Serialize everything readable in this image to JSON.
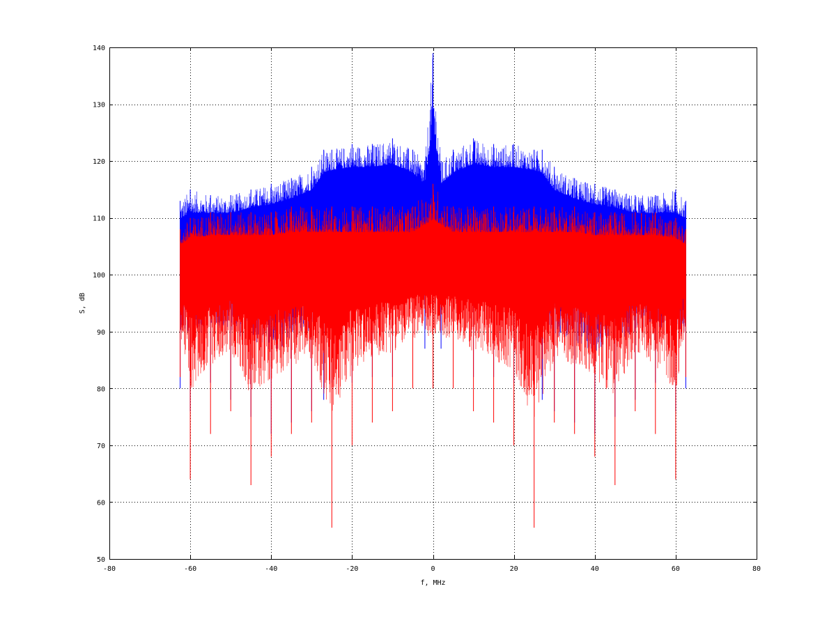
{
  "chart_data": {
    "type": "line",
    "title": "",
    "xlabel": "f, MHz",
    "ylabel": "S, dB",
    "xlim": [
      -80,
      80
    ],
    "ylim": [
      50,
      140
    ],
    "xticks": [
      -80,
      -60,
      -40,
      -20,
      0,
      20,
      40,
      60,
      80
    ],
    "yticks": [
      50,
      60,
      70,
      80,
      90,
      100,
      110,
      120,
      130,
      140
    ],
    "xtick_labels": [
      "-80",
      "-60",
      "-40",
      "-20",
      "0",
      "20",
      "40",
      "60",
      "80"
    ],
    "ytick_labels": [
      "50",
      "60",
      "70",
      "80",
      "90",
      "100",
      "110",
      "120",
      "130",
      "140"
    ],
    "grid": true,
    "grid_style": "dotted",
    "legend": "none",
    "series": [
      {
        "color": "#0000ff",
        "style": "noise-spectrum",
        "x_range": [
          -62.5,
          62.5
        ],
        "x": [
          -62.5,
          -60,
          -55,
          -50,
          -45,
          -40,
          -35,
          -30,
          -27,
          -25,
          -20,
          -15,
          -10,
          -5,
          -2,
          0,
          2,
          5,
          10,
          15,
          20,
          25,
          27,
          30,
          35,
          40,
          45,
          50,
          55,
          60,
          62.5
        ],
        "max_db": [
          113,
          115,
          114,
          114,
          115,
          116,
          117,
          119,
          122,
          122,
          123,
          123,
          124,
          122,
          120,
          139,
          120,
          122,
          124,
          123,
          123,
          122,
          122,
          119,
          117,
          116,
          115,
          114,
          114,
          115,
          113
        ],
        "mean_db": [
          106,
          106,
          107,
          107,
          108,
          108,
          109,
          110,
          113,
          114,
          114,
          114,
          114,
          113,
          111,
          112,
          111,
          113,
          114,
          114,
          114,
          114,
          113,
          110,
          109,
          108,
          108,
          107,
          107,
          106,
          106
        ],
        "min_db": [
          80,
          76,
          81,
          78,
          75,
          72,
          74,
          76,
          78,
          81,
          81,
          82,
          82,
          85,
          87,
          88,
          87,
          85,
          82,
          82,
          81,
          81,
          78,
          76,
          74,
          72,
          75,
          78,
          81,
          76,
          80
        ]
      },
      {
        "color": "#ff0000",
        "style": "noise-spectrum",
        "x_range": [
          -62.5,
          62.5
        ],
        "x": [
          -62.5,
          -60,
          -55,
          -50,
          -45,
          -40,
          -35,
          -30,
          -25,
          -20,
          -15,
          -10,
          -5,
          0,
          5,
          10,
          15,
          20,
          25,
          30,
          35,
          40,
          45,
          50,
          55,
          60,
          62.5
        ],
        "max_db": [
          108,
          110,
          111,
          111,
          111,
          111,
          112,
          112,
          112,
          112,
          112,
          112,
          112,
          116,
          112,
          112,
          112,
          112,
          112,
          112,
          112,
          111,
          111,
          111,
          111,
          110,
          108
        ],
        "mean_db": [
          102,
          102,
          102,
          102,
          102,
          102,
          102,
          102,
          102,
          102,
          102,
          102,
          102,
          102,
          102,
          102,
          102,
          102,
          102,
          102,
          102,
          102,
          102,
          102,
          102,
          102,
          102
        ],
        "min_db": [
          82,
          64,
          72,
          76,
          63,
          68,
          72,
          74,
          55.5,
          70,
          74,
          76,
          80,
          80,
          80,
          76,
          74,
          70,
          55.5,
          74,
          72,
          68,
          63,
          76,
          72,
          64,
          82
        ]
      }
    ],
    "annotations": [
      {
        "text": "peak",
        "x": 0,
        "y": 139,
        "series": 0,
        "shown_as_text": false
      }
    ]
  }
}
